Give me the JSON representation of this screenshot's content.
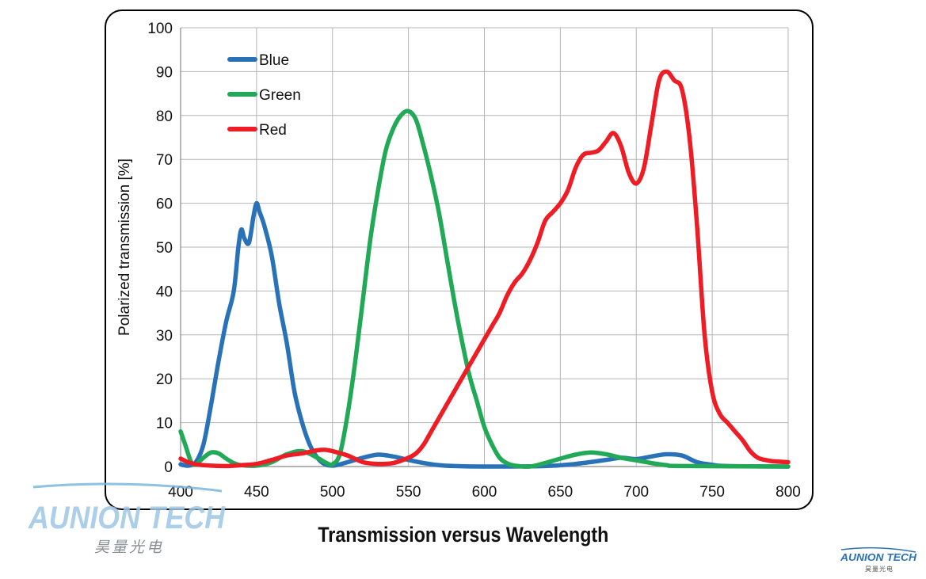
{
  "caption": "Transmission versus Wavelength",
  "watermark": {
    "brand": "AUNION TECH",
    "subtitle": "昊量光电"
  },
  "chart_data": {
    "type": "line",
    "title": "",
    "xlabel": "",
    "ylabel": "Polarized transmission [%]",
    "xlim": [
      400,
      800
    ],
    "ylim": [
      0,
      100
    ],
    "xticks": [
      400,
      450,
      500,
      550,
      600,
      650,
      700,
      750,
      800
    ],
    "yticks": [
      0,
      10,
      20,
      30,
      40,
      50,
      60,
      70,
      80,
      90,
      100
    ],
    "grid": true,
    "legend_position": "top-left",
    "series": [
      {
        "name": "Blue",
        "color": "#2a72b8",
        "points": [
          [
            400,
            0.5
          ],
          [
            405,
            0.2
          ],
          [
            410,
            1
          ],
          [
            415,
            5
          ],
          [
            420,
            14
          ],
          [
            425,
            24
          ],
          [
            430,
            33
          ],
          [
            435,
            40
          ],
          [
            438,
            50
          ],
          [
            440,
            54
          ],
          [
            442,
            52
          ],
          [
            445,
            51
          ],
          [
            448,
            57
          ],
          [
            450,
            60
          ],
          [
            452,
            58
          ],
          [
            455,
            55
          ],
          [
            460,
            48
          ],
          [
            465,
            37
          ],
          [
            470,
            28
          ],
          [
            475,
            17
          ],
          [
            480,
            10
          ],
          [
            485,
            5
          ],
          [
            490,
            2
          ],
          [
            495,
            0.5
          ],
          [
            500,
            0.2
          ],
          [
            505,
            0.5
          ],
          [
            510,
            1
          ],
          [
            520,
            2
          ],
          [
            530,
            2.7
          ],
          [
            540,
            2.3
          ],
          [
            550,
            1.5
          ],
          [
            560,
            0.8
          ],
          [
            570,
            0.3
          ],
          [
            580,
            0.1
          ],
          [
            600,
            0
          ],
          [
            640,
            0.1
          ],
          [
            660,
            0.6
          ],
          [
            680,
            1.5
          ],
          [
            690,
            2
          ],
          [
            700,
            1.7
          ],
          [
            710,
            2.3
          ],
          [
            720,
            2.8
          ],
          [
            730,
            2.5
          ],
          [
            740,
            1
          ],
          [
            750,
            0.4
          ],
          [
            760,
            0.1
          ],
          [
            800,
            0
          ]
        ]
      },
      {
        "name": "Green",
        "color": "#22a957",
        "points": [
          [
            400,
            8
          ],
          [
            403,
            5
          ],
          [
            407,
            1
          ],
          [
            410,
            0.5
          ],
          [
            415,
            2
          ],
          [
            420,
            3.2
          ],
          [
            425,
            3
          ],
          [
            430,
            1.8
          ],
          [
            435,
            0.8
          ],
          [
            440,
            0.3
          ],
          [
            450,
            0.2
          ],
          [
            460,
            1
          ],
          [
            470,
            2.8
          ],
          [
            480,
            3.5
          ],
          [
            490,
            2
          ],
          [
            495,
            1
          ],
          [
            500,
            0.5
          ],
          [
            505,
            3
          ],
          [
            510,
            12
          ],
          [
            515,
            24
          ],
          [
            520,
            38
          ],
          [
            525,
            52
          ],
          [
            530,
            63
          ],
          [
            535,
            72
          ],
          [
            540,
            77
          ],
          [
            545,
            80
          ],
          [
            550,
            81
          ],
          [
            555,
            79
          ],
          [
            560,
            73
          ],
          [
            565,
            66
          ],
          [
            570,
            58
          ],
          [
            575,
            48
          ],
          [
            580,
            38
          ],
          [
            585,
            29
          ],
          [
            590,
            21
          ],
          [
            595,
            15
          ],
          [
            600,
            9
          ],
          [
            605,
            5
          ],
          [
            610,
            2
          ],
          [
            615,
            0.7
          ],
          [
            620,
            0.2
          ],
          [
            630,
            0
          ],
          [
            640,
            0.8
          ],
          [
            650,
            1.8
          ],
          [
            660,
            2.7
          ],
          [
            670,
            3.2
          ],
          [
            680,
            2.8
          ],
          [
            690,
            2
          ],
          [
            700,
            1.4
          ],
          [
            710,
            0.8
          ],
          [
            720,
            0.3
          ],
          [
            730,
            0.1
          ],
          [
            800,
            0
          ]
        ]
      },
      {
        "name": "Red",
        "color": "#ee1c24",
        "points": [
          [
            400,
            1.8
          ],
          [
            405,
            1
          ],
          [
            410,
            0.5
          ],
          [
            420,
            0.2
          ],
          [
            430,
            0.1
          ],
          [
            440,
            0.3
          ],
          [
            450,
            0.6
          ],
          [
            460,
            1.5
          ],
          [
            470,
            2.5
          ],
          [
            480,
            3
          ],
          [
            490,
            3.7
          ],
          [
            495,
            3.8
          ],
          [
            500,
            3.5
          ],
          [
            510,
            2.5
          ],
          [
            520,
            1
          ],
          [
            530,
            0.6
          ],
          [
            540,
            0.8
          ],
          [
            550,
            2
          ],
          [
            555,
            3
          ],
          [
            560,
            5
          ],
          [
            565,
            8
          ],
          [
            570,
            11
          ],
          [
            575,
            14
          ],
          [
            580,
            17
          ],
          [
            585,
            20
          ],
          [
            590,
            23
          ],
          [
            595,
            26
          ],
          [
            600,
            29
          ],
          [
            605,
            32
          ],
          [
            610,
            35
          ],
          [
            615,
            39
          ],
          [
            620,
            42
          ],
          [
            625,
            44
          ],
          [
            630,
            47
          ],
          [
            635,
            51
          ],
          [
            640,
            56
          ],
          [
            645,
            58
          ],
          [
            650,
            60
          ],
          [
            655,
            63
          ],
          [
            660,
            68
          ],
          [
            665,
            71
          ],
          [
            670,
            71.5
          ],
          [
            675,
            72
          ],
          [
            680,
            74
          ],
          [
            685,
            76
          ],
          [
            690,
            73
          ],
          [
            695,
            67
          ],
          [
            700,
            64.5
          ],
          [
            705,
            68
          ],
          [
            710,
            78
          ],
          [
            715,
            88
          ],
          [
            720,
            90
          ],
          [
            725,
            88
          ],
          [
            730,
            86
          ],
          [
            735,
            75
          ],
          [
            740,
            55
          ],
          [
            745,
            30
          ],
          [
            750,
            17
          ],
          [
            755,
            12
          ],
          [
            760,
            10
          ],
          [
            765,
            8
          ],
          [
            770,
            6
          ],
          [
            775,
            3.5
          ],
          [
            780,
            2
          ],
          [
            785,
            1.5
          ],
          [
            790,
            1.2
          ],
          [
            800,
            1
          ]
        ]
      }
    ]
  }
}
